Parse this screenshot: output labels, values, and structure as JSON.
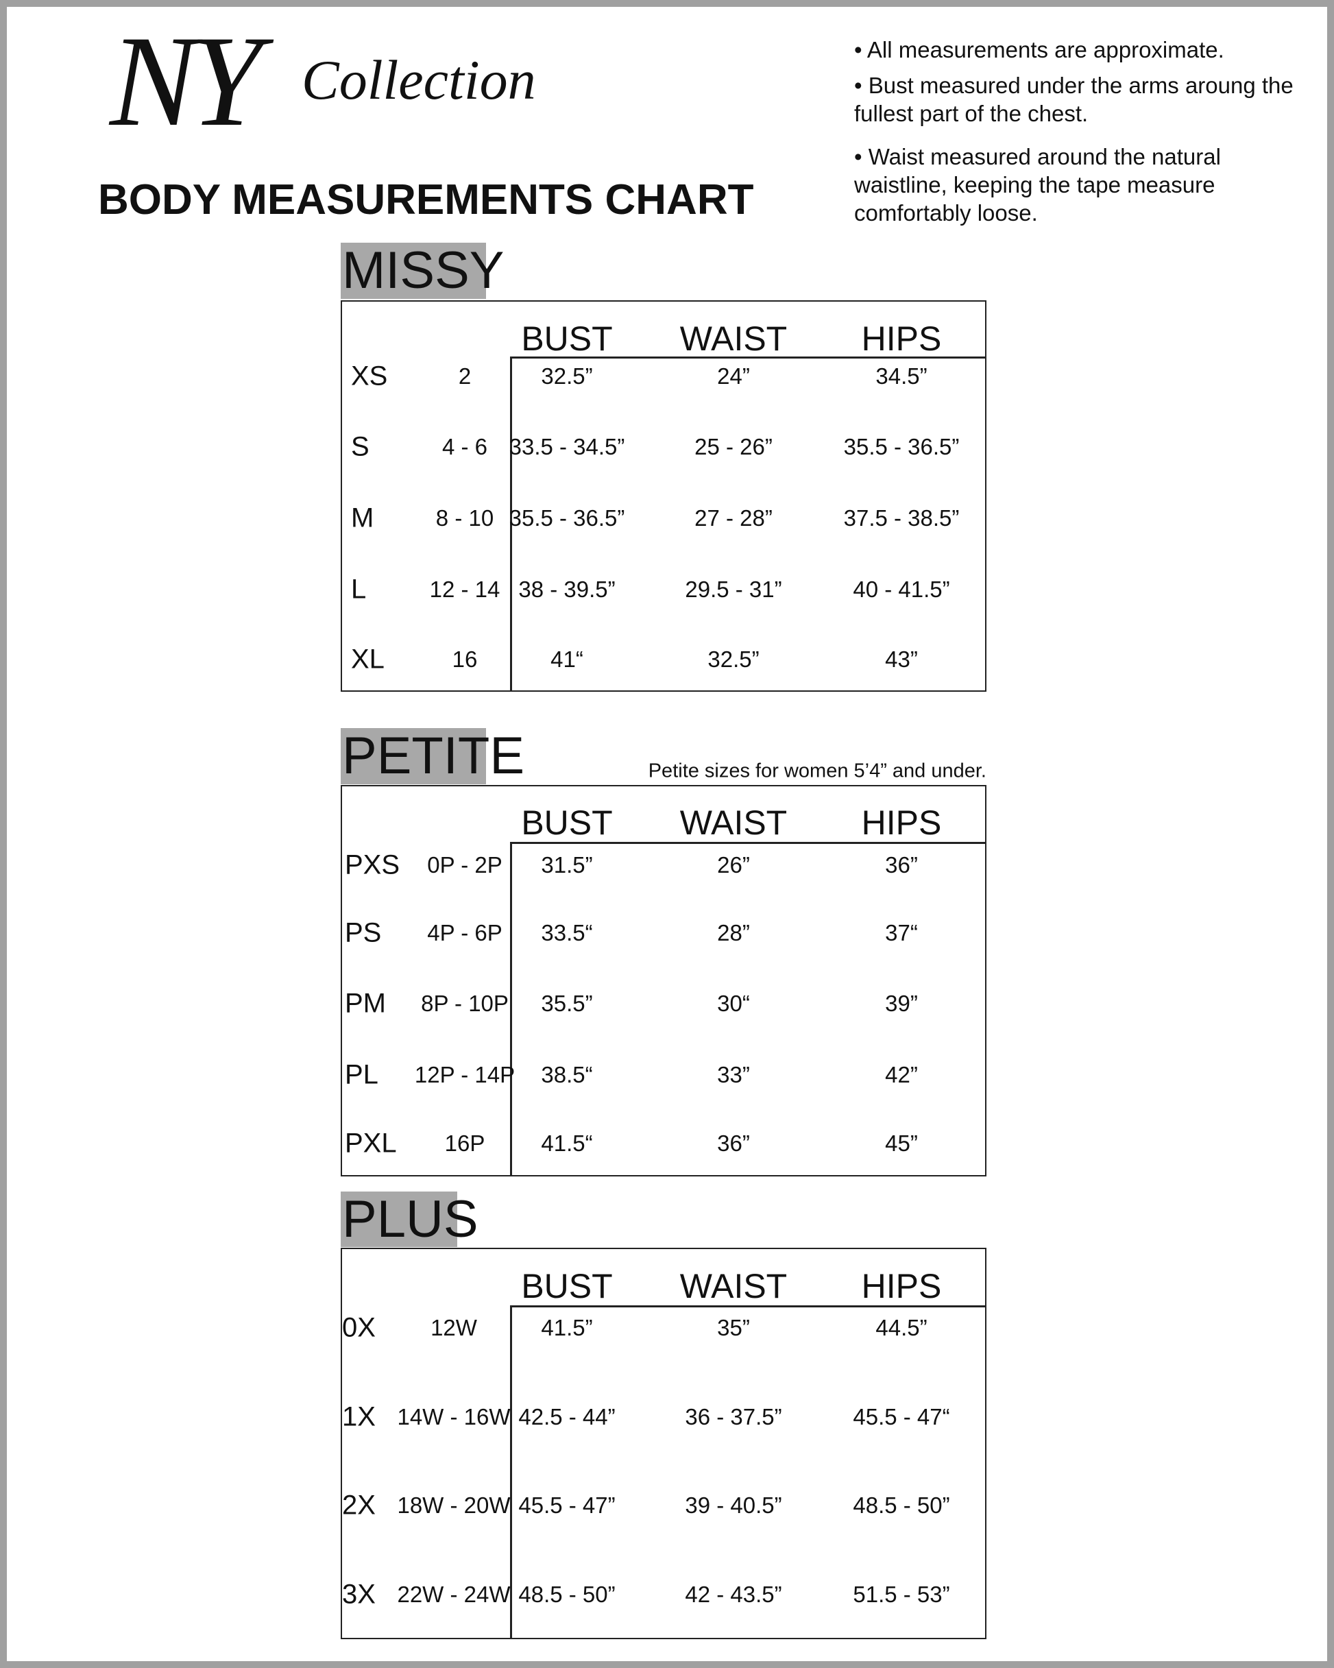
{
  "logo": {
    "mark": "NY",
    "word": "Collection"
  },
  "title": "BODY MEASUREMENTS CHART",
  "notes": [
    "• All measurements are approximate.",
    "• Bust measured under the arms aroung the fullest part of the chest.",
    "• Waist measured around the natural waistline, keeping the tape measure comfortably loose."
  ],
  "sections": [
    {
      "name": "MISSY",
      "headers": [
        "BUST",
        "WAIST",
        "HIPS"
      ],
      "rows": [
        [
          "XS",
          "2",
          "32.5”",
          "24”",
          "34.5”"
        ],
        [
          "S",
          "4 - 6",
          "33.5 - 34.5”",
          "25 - 26”",
          "35.5 - 36.5”"
        ],
        [
          "M",
          "8 - 10",
          "35.5 - 36.5”",
          "27 - 28”",
          "37.5 - 38.5”"
        ],
        [
          "L",
          "12 - 14",
          "38 - 39.5”",
          "29.5 - 31”",
          "40 - 41.5”"
        ],
        [
          "XL",
          "16",
          "41“",
          "32.5”",
          "43”"
        ]
      ]
    },
    {
      "name": "PETITE",
      "note": "Petite sizes for women 5’4” and under.",
      "headers": [
        "BUST",
        "WAIST",
        "HIPS"
      ],
      "rows": [
        [
          "PXS",
          "0P - 2P",
          "31.5”",
          "26”",
          "36”"
        ],
        [
          "PS",
          "4P - 6P",
          "33.5“",
          "28”",
          "37“"
        ],
        [
          "PM",
          "8P - 10P",
          "35.5”",
          "30“",
          "39”"
        ],
        [
          "PL",
          "12P - 14P",
          "38.5“",
          "33”",
          "42”"
        ],
        [
          "PXL",
          "16P",
          "41.5“",
          "36”",
          "45”"
        ]
      ]
    },
    {
      "name": "PLUS",
      "headers": [
        "BUST",
        "WAIST",
        "HIPS"
      ],
      "rows": [
        [
          "0X",
          "12W",
          "41.5”",
          "35”",
          "44.5”"
        ],
        [
          "1X",
          "14W - 16W",
          "42.5 - 44”",
          "36 - 37.5”",
          "45.5 - 47“"
        ],
        [
          "2X",
          "18W - 20W",
          "45.5 - 47”",
          "39 - 40.5”",
          "48.5 - 50”"
        ],
        [
          "3X",
          "22W - 24W",
          "48.5 - 50”",
          "42 - 43.5”",
          "51.5 - 53”"
        ]
      ]
    }
  ]
}
